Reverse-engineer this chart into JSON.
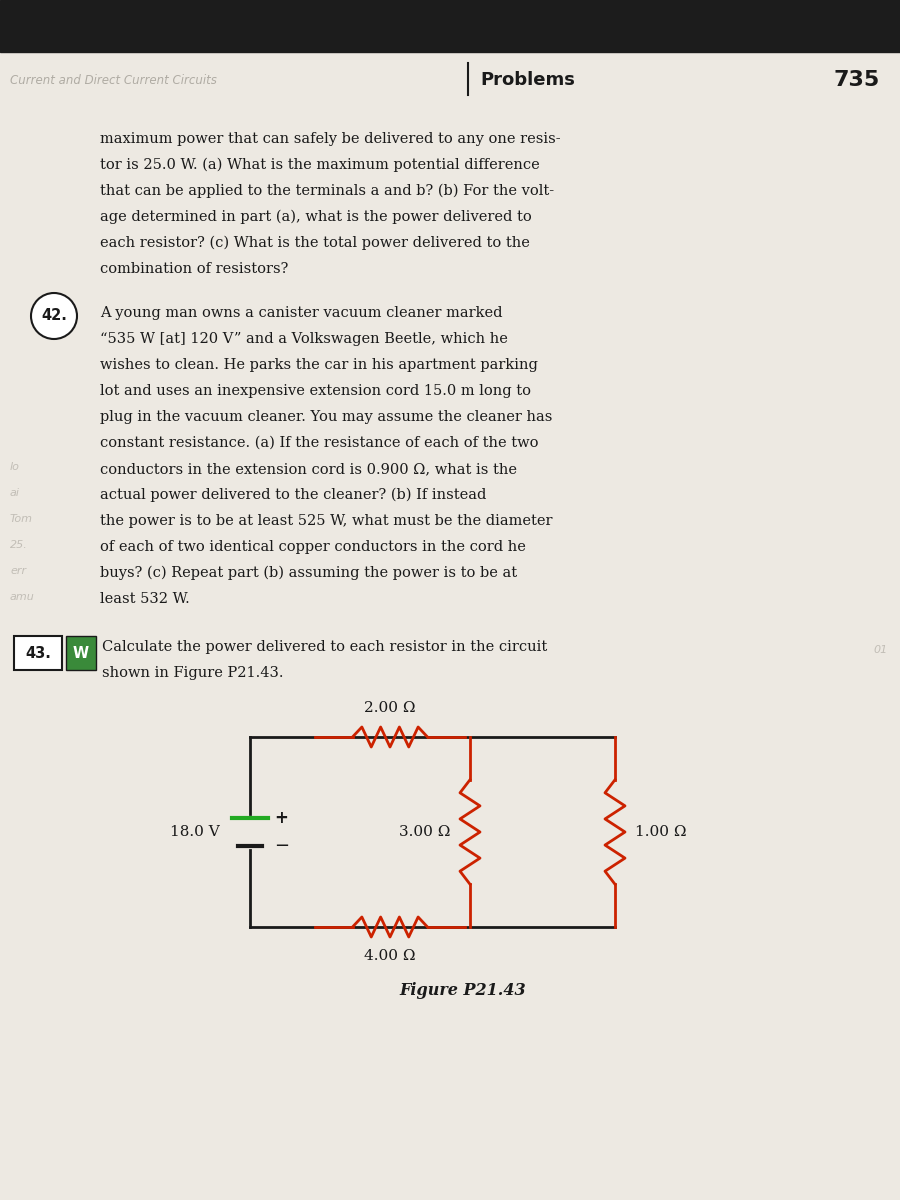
{
  "page_bg": "#ede9e2",
  "dark_bar_color": "#1c1c1c",
  "header_mirrored": "Current and Direct Current Circuits",
  "header_problems": "Problems",
  "header_number": "735",
  "text_color": "#1a1a1a",
  "faded_color": "#b0aca4",
  "resistor_color": "#cc2200",
  "wire_color": "#1a1a1a",
  "battery_green": "#22aa22",
  "body1_lines": [
    "maximum power that can safely be delivered to any one resis-",
    "tor is 25.0 W. (a) What is the maximum potential difference",
    "that can be applied to the terminals a and b? (b) For the volt-",
    "age determined in part (a), what is the power delivered to",
    "each resistor? (c) What is the total power delivered to the",
    "combination of resistors?"
  ],
  "prob42_lines": [
    "A young man owns a canister vacuum cleaner marked",
    "“535 W [at] 120 V” and a Volkswagen Beetle, which he",
    "wishes to clean. He parks the car in his apartment parking",
    "lot and uses an inexpensive extension cord 15.0 m long to",
    "plug in the vacuum cleaner. You may assume the cleaner has",
    "constant resistance. (a) If the resistance of each of the two",
    "conductors in the extension cord is 0.900 Ω, what is the",
    "actual power delivered to the cleaner? (b) If instead",
    "the power is to be at least 525 W, what must be the diameter",
    "of each of two identical copper conductors in the cord he",
    "buys? (c) Repeat part (b) assuming the power is to be at",
    "least 532 W."
  ],
  "prob43_line1": "Calculate the power delivered to each resistor in the circuit",
  "prob43_line2": "shown in Figure P21.43.",
  "figure_label": "Figure P21.43",
  "voltage_label": "18.0 V",
  "R1_label": "2.00 Ω",
  "R2_label": "3.00 Ω",
  "R3_label": "4.00 Ω",
  "R4_label": "1.00 Ω",
  "left_margin_faded": [
    "lo",
    "ai",
    "Tom",
    "25.",
    "err",
    "amu"
  ],
  "right_margin_faded": [
    "01"
  ]
}
